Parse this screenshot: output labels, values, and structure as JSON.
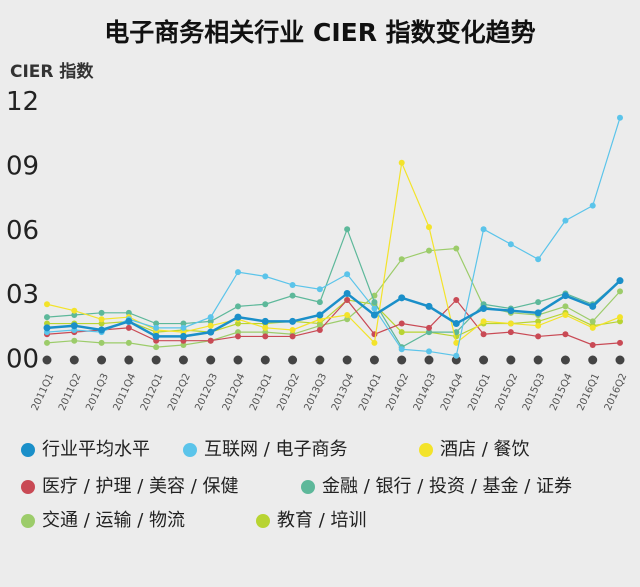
{
  "chart_data": {
    "type": "line",
    "title": "电子商务相关行业 CIER 指数变化趋势",
    "y_label": "CIER 指数",
    "categories": [
      "2011Q1",
      "2011Q2",
      "2011Q3",
      "2011Q4",
      "2012Q1",
      "2012Q2",
      "2012Q3",
      "2012Q4",
      "2013Q1",
      "2013Q2",
      "2013Q3",
      "2013Q4",
      "2014Q1",
      "2014Q2",
      "2014Q3",
      "2014Q4",
      "2015Q1",
      "2015Q2",
      "2015Q3",
      "2015Q4",
      "2016Q1",
      "2016Q2"
    ],
    "ylim": [
      0,
      12.5
    ],
    "yticks": [
      {
        "value": 0,
        "label": "00"
      },
      {
        "value": 3,
        "label": "03"
      },
      {
        "value": 6,
        "label": "06"
      },
      {
        "value": 9,
        "label": "09"
      },
      {
        "value": 12,
        "label": "12"
      }
    ],
    "series": [
      {
        "name": "行业平均水平",
        "color": "#1a8fc9",
        "values": [
          1.5,
          1.6,
          1.4,
          1.8,
          1.1,
          1.1,
          1.3,
          2.0,
          1.8,
          1.8,
          2.1,
          3.1,
          2.1,
          2.9,
          2.5,
          1.7,
          2.4,
          2.3,
          2.2,
          3.0,
          2.5,
          3.7
        ]
      },
      {
        "name": "互联网 / 电子商务",
        "color": "#5bc4ea",
        "values": [
          1.3,
          1.4,
          1.3,
          1.9,
          1.5,
          1.5,
          2.0,
          4.1,
          3.9,
          3.5,
          3.3,
          4.0,
          2.4,
          0.5,
          0.4,
          0.2,
          6.1,
          5.4,
          4.7,
          6.5,
          7.2,
          11.3
        ]
      },
      {
        "name": "酒店 / 餐饮",
        "color": "#f3e32a",
        "values": [
          2.6,
          2.3,
          1.9,
          2.0,
          1.4,
          1.3,
          1.6,
          1.9,
          1.5,
          1.4,
          1.9,
          2.1,
          0.8,
          9.2,
          6.2,
          0.8,
          1.8,
          1.7,
          1.6,
          2.1,
          1.5,
          2.0
        ]
      },
      {
        "name": "医疗 / 护理 / 美容 / 保健",
        "color": "#c94a55",
        "values": [
          1.2,
          1.3,
          1.4,
          1.5,
          0.9,
          0.9,
          0.9,
          1.1,
          1.1,
          1.1,
          1.4,
          2.8,
          1.2,
          1.7,
          1.5,
          2.8,
          1.2,
          1.3,
          1.1,
          1.2,
          0.7,
          0.8
        ]
      },
      {
        "name": "金融 / 银行 / 投资 / 基金 / 证券",
        "color": "#5db89a",
        "values": [
          2.0,
          2.1,
          2.2,
          2.2,
          1.7,
          1.7,
          1.8,
          2.5,
          2.6,
          3.0,
          2.7,
          6.1,
          2.7,
          0.6,
          1.3,
          1.3,
          2.6,
          2.4,
          2.7,
          3.1,
          2.6,
          3.7
        ]
      },
      {
        "name": "交通 / 运输 / 物流",
        "color": "#9ccc6a",
        "values": [
          0.8,
          0.9,
          0.8,
          0.8,
          0.6,
          0.7,
          0.9,
          1.3,
          1.3,
          1.2,
          1.6,
          1.9,
          3.0,
          4.7,
          5.1,
          5.2,
          2.5,
          2.2,
          2.1,
          2.5,
          1.8,
          3.2
        ]
      },
      {
        "name": "教育 / 培训",
        "color": "#b8d432",
        "values": [
          1.7,
          1.7,
          1.7,
          1.8,
          1.3,
          1.4,
          1.3,
          1.7,
          1.7,
          1.8,
          1.7,
          2.8,
          2.6,
          1.3,
          1.3,
          1.1,
          1.7,
          1.7,
          1.8,
          2.2,
          1.6,
          1.8
        ]
      }
    ]
  }
}
